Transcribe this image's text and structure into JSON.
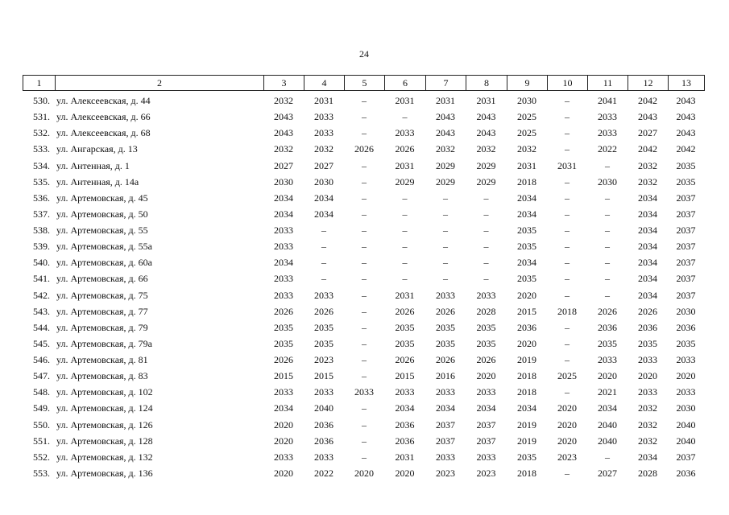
{
  "page_number": "24",
  "table": {
    "header": [
      "1",
      "2",
      "3",
      "4",
      "5",
      "6",
      "7",
      "8",
      "9",
      "10",
      "11",
      "12",
      "13"
    ],
    "rows": [
      [
        "530.",
        "ул. Алексеевская, д. 44",
        "2032",
        "2031",
        "–",
        "2031",
        "2031",
        "2031",
        "2030",
        "–",
        "2041",
        "2042",
        "2043"
      ],
      [
        "531.",
        "ул. Алексеевская, д. 66",
        "2043",
        "2033",
        "–",
        "–",
        "2043",
        "2043",
        "2025",
        "–",
        "2033",
        "2043",
        "2043"
      ],
      [
        "532.",
        "ул. Алексеевская, д. 68",
        "2043",
        "2033",
        "–",
        "2033",
        "2043",
        "2043",
        "2025",
        "–",
        "2033",
        "2027",
        "2043"
      ],
      [
        "533.",
        "ул. Ангарская, д. 13",
        "2032",
        "2032",
        "2026",
        "2026",
        "2032",
        "2032",
        "2032",
        "–",
        "2022",
        "2042",
        "2042"
      ],
      [
        "534.",
        "ул. Антенная, д. 1",
        "2027",
        "2027",
        "–",
        "2031",
        "2029",
        "2029",
        "2031",
        "2031",
        "–",
        "2032",
        "2035"
      ],
      [
        "535.",
        "ул. Антенная, д. 14а",
        "2030",
        "2030",
        "–",
        "2029",
        "2029",
        "2029",
        "2018",
        "–",
        "2030",
        "2032",
        "2035"
      ],
      [
        "536.",
        "ул. Артемовская, д. 45",
        "2034",
        "2034",
        "–",
        "–",
        "–",
        "–",
        "2034",
        "–",
        "–",
        "2034",
        "2037"
      ],
      [
        "537.",
        "ул. Артемовская, д. 50",
        "2034",
        "2034",
        "–",
        "–",
        "–",
        "–",
        "2034",
        "–",
        "–",
        "2034",
        "2037"
      ],
      [
        "538.",
        "ул. Артемовская, д. 55",
        "2033",
        "–",
        "–",
        "–",
        "–",
        "–",
        "2035",
        "–",
        "–",
        "2034",
        "2037"
      ],
      [
        "539.",
        "ул. Артемовская, д. 55а",
        "2033",
        "–",
        "–",
        "–",
        "–",
        "–",
        "2035",
        "–",
        "–",
        "2034",
        "2037"
      ],
      [
        "540.",
        "ул. Артемовская, д. 60а",
        "2034",
        "–",
        "–",
        "–",
        "–",
        "–",
        "2034",
        "–",
        "–",
        "2034",
        "2037"
      ],
      [
        "541.",
        "ул. Артемовская, д. 66",
        "2033",
        "–",
        "–",
        "–",
        "–",
        "–",
        "2035",
        "–",
        "–",
        "2034",
        "2037"
      ],
      [
        "542.",
        "ул. Артемовская, д. 75",
        "2033",
        "2033",
        "–",
        "2031",
        "2033",
        "2033",
        "2020",
        "–",
        "–",
        "2034",
        "2037"
      ],
      [
        "543.",
        "ул. Артемовская, д. 77",
        "2026",
        "2026",
        "–",
        "2026",
        "2026",
        "2028",
        "2015",
        "2018",
        "2026",
        "2026",
        "2030"
      ],
      [
        "544.",
        "ул. Артемовская, д. 79",
        "2035",
        "2035",
        "–",
        "2035",
        "2035",
        "2035",
        "2036",
        "–",
        "2036",
        "2036",
        "2036"
      ],
      [
        "545.",
        "ул. Артемовская, д. 79а",
        "2035",
        "2035",
        "–",
        "2035",
        "2035",
        "2035",
        "2020",
        "–",
        "2035",
        "2035",
        "2035"
      ],
      [
        "546.",
        "ул. Артемовская, д. 81",
        "2026",
        "2023",
        "–",
        "2026",
        "2026",
        "2026",
        "2019",
        "–",
        "2033",
        "2033",
        "2033"
      ],
      [
        "547.",
        "ул. Артемовская, д. 83",
        "2015",
        "2015",
        "–",
        "2015",
        "2016",
        "2020",
        "2018",
        "2025",
        "2020",
        "2020",
        "2020"
      ],
      [
        "548.",
        "ул. Артемовская, д. 102",
        "2033",
        "2033",
        "2033",
        "2033",
        "2033",
        "2033",
        "2018",
        "–",
        "2021",
        "2033",
        "2033"
      ],
      [
        "549.",
        "ул. Артемовская, д. 124",
        "2034",
        "2040",
        "–",
        "2034",
        "2034",
        "2034",
        "2034",
        "2020",
        "2034",
        "2032",
        "2030"
      ],
      [
        "550.",
        "ул. Артемовская, д. 126",
        "2020",
        "2036",
        "–",
        "2036",
        "2037",
        "2037",
        "2019",
        "2020",
        "2040",
        "2032",
        "2040"
      ],
      [
        "551.",
        "ул. Артемовская, д. 128",
        "2020",
        "2036",
        "–",
        "2036",
        "2037",
        "2037",
        "2019",
        "2020",
        "2040",
        "2032",
        "2040"
      ],
      [
        "552.",
        "ул. Артемовская, д. 132",
        "2033",
        "2033",
        "–",
        "2031",
        "2033",
        "2033",
        "2035",
        "2023",
        "–",
        "2034",
        "2037"
      ],
      [
        "553.",
        "ул. Артемовская, д. 136",
        "2020",
        "2022",
        "2020",
        "2020",
        "2023",
        "2023",
        "2018",
        "–",
        "2027",
        "2028",
        "2036"
      ]
    ]
  }
}
